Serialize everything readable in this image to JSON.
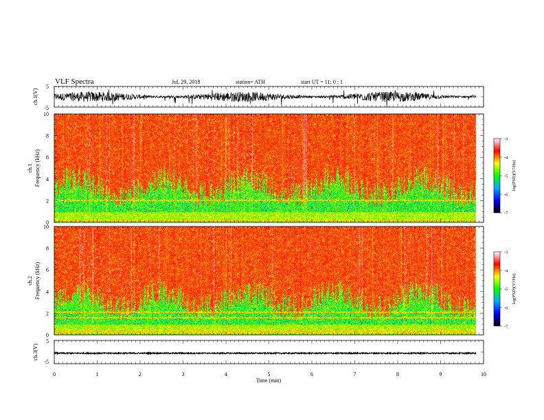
{
  "header": {
    "title": "VLF  Spectra",
    "date": "Jul.  29,  2018",
    "station": "station= ATH",
    "start": "start  UT  =    11: 0   : 1"
  },
  "chart_data": [
    {
      "type": "line",
      "panel": "ch1-waveform",
      "ylabel": "ch.1(V)",
      "ylim": [
        -5,
        5
      ],
      "yticks": [
        5,
        -5
      ],
      "xlim": [
        0,
        10
      ],
      "data_end_min": 9.83,
      "baseline_v": 0,
      "spread_v": 2.5
    },
    {
      "type": "heatmap",
      "panel": "ch1-spectrogram",
      "channel_label": "ch.1",
      "ylabel": "Frequency  (kHz)",
      "ylim": [
        0,
        10
      ],
      "yticks": [
        0,
        2,
        4,
        6,
        8,
        10
      ],
      "xlim": [
        0,
        10
      ],
      "data_end_min": 9.83,
      "colorbar": {
        "label": "log(PSD)(V²/Hz)",
        "range": [
          -7,
          -3
        ],
        "ticks": [
          -3,
          -4,
          -5,
          -6,
          -7
        ]
      }
    },
    {
      "type": "heatmap",
      "panel": "ch2-spectrogram",
      "channel_label": "ch.2",
      "ylabel": "Frequency  (kHz)",
      "ylim": [
        0,
        10
      ],
      "yticks": [
        0,
        2,
        4,
        6,
        8,
        10
      ],
      "xlim": [
        0,
        10
      ],
      "data_end_min": 9.83,
      "colorbar": {
        "label": "log(PSD)(V²/Hz)",
        "range": [
          -7,
          -3
        ],
        "ticks": [
          -3,
          -4,
          -5,
          -6,
          -7
        ]
      }
    },
    {
      "type": "line",
      "panel": "ch3-waveform",
      "ylabel": "ch.3(V)",
      "ylim": [
        -5,
        5
      ],
      "yticks": [
        5,
        -5
      ],
      "xlim": [
        0,
        10
      ],
      "data_end_min": 9.83,
      "baseline_v": -0.5,
      "spread_v": 0.25,
      "xlabel": "Time  (min)",
      "xticks": [
        0,
        1,
        2,
        3,
        4,
        5,
        6,
        7,
        8,
        9,
        10
      ]
    }
  ],
  "colors": {
    "palette": [
      "#000000",
      "#0000ff",
      "#00aaff",
      "#00ff00",
      "#ffff00",
      "#ff0000",
      "#ffffff"
    ]
  }
}
